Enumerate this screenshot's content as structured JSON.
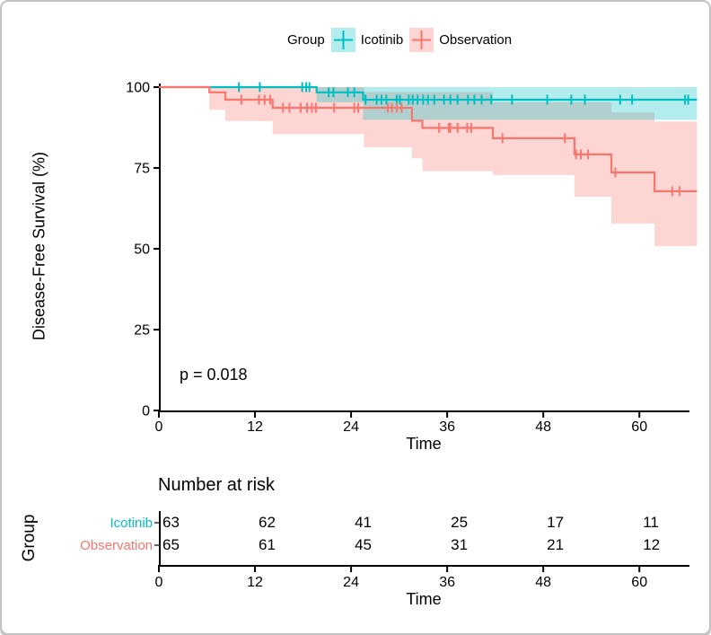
{
  "legend": {
    "title": "Group",
    "items": [
      {
        "label": "Icotinib",
        "color": "#00BFC4"
      },
      {
        "label": "Observation",
        "color": "#F8766D"
      }
    ]
  },
  "chart_data": {
    "type": "line",
    "subtype": "kaplan-meier-step",
    "title": "",
    "xlabel": "Time",
    "ylabel": "Disease-Free Survival (%)",
    "x_ticks": [
      0,
      12,
      24,
      36,
      48,
      60
    ],
    "y_ticks": [
      0,
      25,
      50,
      75,
      100
    ],
    "xlim": [
      0,
      67.2
    ],
    "ylim": [
      0,
      100
    ],
    "grid": "off",
    "legend_position": "top",
    "annotation": "p = 0.018",
    "series": [
      {
        "name": "Icotinib",
        "color": "#00BFC4",
        "steps": [
          [
            0,
            100
          ],
          [
            19.7,
            98.4
          ],
          [
            25.5,
            96.1
          ]
        ],
        "end_time": 67.2,
        "censor_times": [
          10.0,
          12.6,
          17.9,
          18.4,
          18.8,
          21.2,
          21.8,
          23.6,
          24.4,
          25.8,
          27.2,
          27.8,
          28.4,
          29.7,
          30.1,
          31.2,
          31.7,
          32.3,
          33.0,
          33.6,
          34.4,
          35.6,
          36.4,
          37.3,
          38.6,
          39.4,
          40.3,
          41.5,
          44.1,
          48.5,
          51.5,
          53.2,
          57.6,
          59.1,
          65.7,
          66.1
        ],
        "band": {
          "upper": [
            [
              19.7,
              100
            ]
          ],
          "lower": [
            [
              19.7,
              95.3
            ],
            [
              25.5,
              89.9
            ]
          ]
        }
      },
      {
        "name": "Observation",
        "color": "#F8766D",
        "steps": [
          [
            0,
            100
          ],
          [
            6.3,
            98.4
          ],
          [
            8.3,
            96.1
          ],
          [
            14.2,
            93.6
          ],
          [
            31.6,
            89.6
          ],
          [
            32.9,
            87.4
          ],
          [
            41.7,
            84.2
          ],
          [
            51.9,
            79.2
          ],
          [
            56.5,
            73.6
          ],
          [
            61.9,
            67.8
          ]
        ],
        "end_time": 67.2,
        "censor_times": [
          10.3,
          12.5,
          13.2,
          13.9,
          15.5,
          16.3,
          17.7,
          18.5,
          19.1,
          19.6,
          21.9,
          24.4,
          24.9,
          28.6,
          29.1,
          29.7,
          30.3,
          35.0,
          36.2,
          36.4,
          37.3,
          38.5,
          39.0,
          42.9,
          50.7,
          52.1,
          52.7,
          53.6,
          57.0,
          64.1,
          65.0
        ],
        "band": {
          "upper": [
            [
              6.3,
              100
            ],
            [
              25.6,
              98.5
            ],
            [
              41.7,
              95.3
            ],
            [
              56.5,
              92.2
            ],
            [
              61.9,
              89.4
            ]
          ],
          "lower": [
            [
              6.3,
              93.0
            ],
            [
              8.3,
              89.5
            ],
            [
              14.2,
              85.5
            ],
            [
              25.6,
              81.4
            ],
            [
              31.6,
              78.0
            ],
            [
              32.9,
              74.0
            ],
            [
              41.7,
              72.8
            ],
            [
              51.9,
              66.1
            ],
            [
              56.5,
              57.8
            ],
            [
              61.9,
              50.8
            ]
          ]
        }
      }
    ]
  },
  "risk_table": {
    "title": "Number at risk",
    "axis_label": "Group",
    "xlabel": "Time",
    "x_ticks": [
      0,
      12,
      24,
      36,
      48,
      60
    ],
    "rows": [
      {
        "label": "Icotinib",
        "color": "#00BFC4",
        "values": [
          63,
          62,
          41,
          25,
          17,
          11
        ]
      },
      {
        "label": "Observation",
        "color": "#F8766D",
        "values": [
          65,
          61,
          45,
          31,
          21,
          12
        ]
      }
    ]
  }
}
